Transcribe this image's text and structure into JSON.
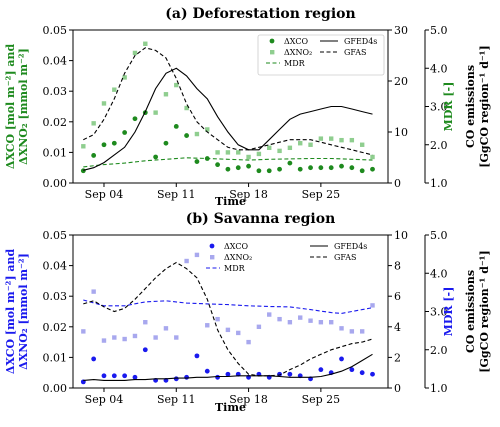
{
  "chart_data": [
    {
      "type": "scatter+line",
      "title": "(a) Deforestation region",
      "xlabel": "Time",
      "ylabel_left": "ΔXCO [mol m⁻²] and ΔXNO₂ [mmol m⁻²]",
      "ylabel_mid": "MDR [-]",
      "ylabel_right": "CO emissions [GgCO region⁻¹ d⁻¹]",
      "x_ticks": [
        "Sep 04",
        "Sep 11",
        "Sep 18",
        "Sep 25"
      ],
      "x_tick_days": [
        4,
        11,
        18,
        25
      ],
      "xlim": [
        1,
        31.5
      ],
      "ylim_left": [
        0,
        0.05
      ],
      "y_ticks_left": [
        "0.00",
        "0.01",
        "0.02",
        "0.03",
        "0.04",
        "0.05"
      ],
      "ylim_mid": [
        1.0,
        5.0
      ],
      "y_ticks_mid": [
        "1.0",
        "2.0",
        "3.0",
        "4.0",
        "5.0"
      ],
      "ylim_right": [
        0,
        30
      ],
      "y_ticks_right": [
        "0",
        "10",
        "20",
        "30"
      ],
      "colors": {
        "main": "#1e8a1e",
        "light": "#8fce8f"
      },
      "legend_labels": {
        "dxco": "ΔXCO",
        "dxno2": "ΔXNO₂",
        "mdr": "MDR",
        "gfed": "GFED4s",
        "gfas": "GFAS"
      },
      "series": [
        {
          "name": "ΔXCO",
          "axis": "left",
          "style": "scatter",
          "x": [
            2,
            3,
            4,
            5,
            6,
            7,
            8,
            9,
            10,
            11,
            12,
            13,
            14,
            15,
            16,
            17,
            18,
            19,
            20,
            21,
            22,
            23,
            24,
            25,
            26,
            27,
            28,
            29,
            30
          ],
          "y": [
            0.004,
            0.009,
            0.0125,
            0.013,
            0.0165,
            0.021,
            0.023,
            0.0085,
            0.013,
            0.0185,
            0.0155,
            0.007,
            0.008,
            0.006,
            0.0045,
            0.005,
            0.0055,
            0.004,
            0.004,
            0.0045,
            0.0065,
            0.0045,
            0.005,
            0.005,
            0.005,
            0.0055,
            0.005,
            0.004,
            0.0045
          ]
        },
        {
          "name": "ΔXNO₂",
          "axis": "left",
          "style": "scatter",
          "x": [
            2,
            3,
            4,
            5,
            6,
            7,
            8,
            9,
            10,
            11,
            12,
            13,
            14,
            15,
            16,
            17,
            18,
            19,
            20,
            21,
            22,
            23,
            24,
            25,
            26,
            27,
            28,
            29,
            30
          ],
          "y": [
            0.012,
            0.0195,
            0.026,
            0.0305,
            0.0345,
            0.0425,
            0.0455,
            0.023,
            0.029,
            0.032,
            0.0245,
            0.016,
            0.0175,
            0.01,
            0.01,
            0.01,
            0.0085,
            0.0095,
            0.0115,
            0.0105,
            0.0115,
            0.013,
            0.0125,
            0.0145,
            0.0145,
            0.014,
            0.014,
            0.0125,
            0.0085
          ]
        },
        {
          "name": "MDR",
          "axis": "mid",
          "style": "dashed",
          "x": [
            2,
            4,
            6,
            8,
            10,
            12,
            14,
            16,
            18,
            20,
            22,
            24,
            26,
            28,
            30
          ],
          "y": [
            1.42,
            1.48,
            1.52,
            1.58,
            1.62,
            1.66,
            1.64,
            1.62,
            1.6,
            1.62,
            1.63,
            1.64,
            1.64,
            1.62,
            1.6
          ]
        },
        {
          "name": "GFED4s",
          "axis": "right",
          "style": "solid",
          "x": [
            2,
            3,
            4,
            5,
            6,
            7,
            8,
            9,
            10,
            11,
            12,
            13,
            14,
            15,
            16,
            17,
            18,
            19,
            20,
            21,
            22,
            23,
            24,
            25,
            26,
            27,
            28,
            29,
            30
          ],
          "y": [
            2.5,
            3.0,
            4.0,
            5.5,
            7.0,
            10.0,
            14.0,
            18.5,
            21.5,
            22.5,
            21.0,
            18.5,
            16.5,
            13.0,
            10.0,
            7.5,
            6.5,
            6.5,
            8.5,
            10.5,
            12.5,
            13.5,
            14.0,
            14.5,
            15.0,
            15.0,
            14.5,
            14.0,
            13.5
          ]
        },
        {
          "name": "GFAS",
          "axis": "right",
          "style": "dashed",
          "x": [
            2,
            3,
            4,
            5,
            6,
            7,
            8,
            9,
            10,
            11,
            12,
            13,
            14,
            15,
            16,
            17,
            18,
            19,
            20,
            21,
            22,
            23,
            24,
            25,
            26,
            27,
            28,
            29,
            30
          ],
          "y": [
            8.5,
            9.5,
            12.5,
            16.5,
            21.5,
            25.0,
            26.5,
            26.0,
            24.5,
            20.5,
            15.5,
            12.0,
            10.0,
            8.5,
            7.0,
            6.5,
            6.5,
            7.0,
            7.5,
            8.0,
            8.5,
            8.5,
            8.5,
            8.0,
            7.5,
            7.0,
            6.5,
            6.0,
            5.5
          ]
        }
      ]
    },
    {
      "type": "scatter+line",
      "title": "(b) Savanna region",
      "xlabel": "Time",
      "ylabel_left": "ΔXCO [mol m⁻²] and ΔXNO₂ [mmol m⁻²]",
      "ylabel_mid": "MDR [-]",
      "ylabel_right": "CO emissions [GgCO region⁻¹ d⁻¹]",
      "x_ticks": [
        "Sep 04",
        "Sep 11",
        "Sep 18",
        "Sep 25"
      ],
      "x_tick_days": [
        4,
        11,
        18,
        25
      ],
      "xlim": [
        1,
        31.5
      ],
      "ylim_left": [
        0,
        0.05
      ],
      "y_ticks_left": [
        "0.00",
        "0.01",
        "0.02",
        "0.03",
        "0.04",
        "0.05"
      ],
      "ylim_mid": [
        1.0,
        5.0
      ],
      "y_ticks_mid": [
        "1.0",
        "2.0",
        "3.0",
        "4.0",
        "5.0"
      ],
      "ylim_right": [
        0,
        10
      ],
      "y_ticks_right": [
        "0",
        "2",
        "4",
        "6",
        "8",
        "10"
      ],
      "colors": {
        "main": "#1a1aee",
        "light": "#a8a8ee"
      },
      "legend_labels": {
        "dxco": "ΔXCO",
        "dxno2": "ΔXNO₂",
        "mdr": "MDR",
        "gfed": "GFED4s",
        "gfas": "GFAS"
      },
      "series": [
        {
          "name": "ΔXCO",
          "axis": "left",
          "style": "scatter",
          "x": [
            2,
            3,
            4,
            5,
            6,
            7,
            8,
            9,
            10,
            11,
            12,
            13,
            14,
            15,
            16,
            17,
            18,
            19,
            20,
            21,
            22,
            23,
            24,
            25,
            26,
            27,
            28,
            29,
            30
          ],
          "y": [
            0.002,
            0.0095,
            0.004,
            0.004,
            0.004,
            0.0035,
            0.0125,
            0.0025,
            0.0025,
            0.003,
            0.0035,
            0.0105,
            0.0055,
            0.0035,
            0.0045,
            0.0045,
            0.0035,
            0.0045,
            0.0035,
            0.0045,
            0.0045,
            0.004,
            0.003,
            0.006,
            0.005,
            0.0095,
            0.006,
            0.005,
            0.0045
          ]
        },
        {
          "name": "ΔXNO₂",
          "axis": "left",
          "style": "scatter",
          "x": [
            2,
            3,
            4,
            5,
            6,
            7,
            8,
            9,
            10,
            11,
            12,
            13,
            14,
            15,
            16,
            17,
            18,
            19,
            20,
            21,
            22,
            23,
            24,
            25,
            26,
            27,
            28,
            29,
            30
          ],
          "y": [
            0.0185,
            0.0315,
            0.0155,
            0.0165,
            0.016,
            0.017,
            0.0215,
            0.0165,
            0.0195,
            0.0165,
            0.0415,
            0.0435,
            0.0205,
            0.0225,
            0.019,
            0.018,
            0.015,
            0.02,
            0.024,
            0.0225,
            0.0215,
            0.023,
            0.022,
            0.0215,
            0.0215,
            0.0195,
            0.0185,
            0.0185,
            0.027
          ]
        },
        {
          "name": "MDR",
          "axis": "mid",
          "style": "dashed",
          "x": [
            2,
            4,
            6,
            8,
            10,
            12,
            14,
            16,
            18,
            20,
            22,
            24,
            26,
            27,
            28,
            29,
            30
          ],
          "y": [
            3.3,
            3.15,
            3.15,
            3.25,
            3.28,
            3.22,
            3.2,
            3.18,
            3.15,
            3.13,
            3.12,
            3.05,
            2.97,
            2.95,
            3.0,
            3.05,
            3.1
          ]
        },
        {
          "name": "GFED4s",
          "axis": "right",
          "style": "solid",
          "x": [
            2,
            3,
            4,
            5,
            6,
            7,
            8,
            9,
            10,
            11,
            12,
            13,
            14,
            15,
            16,
            17,
            18,
            19,
            20,
            21,
            22,
            23,
            24,
            25,
            26,
            27,
            28,
            29,
            30
          ],
          "y": [
            0.5,
            0.55,
            0.5,
            0.5,
            0.5,
            0.55,
            0.55,
            0.6,
            0.6,
            0.65,
            0.65,
            0.7,
            0.7,
            0.75,
            0.75,
            0.8,
            0.8,
            0.8,
            0.8,
            0.75,
            0.7,
            0.7,
            0.7,
            0.75,
            0.9,
            1.1,
            1.4,
            1.8,
            2.2
          ]
        },
        {
          "name": "GFAS",
          "axis": "right",
          "style": "dashed",
          "x": [
            2,
            3,
            4,
            5,
            6,
            7,
            8,
            9,
            10,
            11,
            12,
            13,
            14,
            15,
            16,
            17,
            18,
            19,
            20,
            21,
            22,
            23,
            24,
            25,
            26,
            27,
            28,
            29,
            30
          ],
          "y": [
            5.5,
            5.7,
            5.3,
            5.0,
            5.2,
            5.8,
            6.5,
            7.2,
            7.8,
            8.2,
            7.8,
            7.2,
            5.8,
            3.8,
            2.5,
            1.6,
            0.9,
            0.8,
            0.8,
            0.85,
            1.2,
            1.5,
            1.9,
            2.2,
            2.5,
            2.7,
            2.9,
            3.0,
            3.2
          ]
        }
      ]
    }
  ]
}
